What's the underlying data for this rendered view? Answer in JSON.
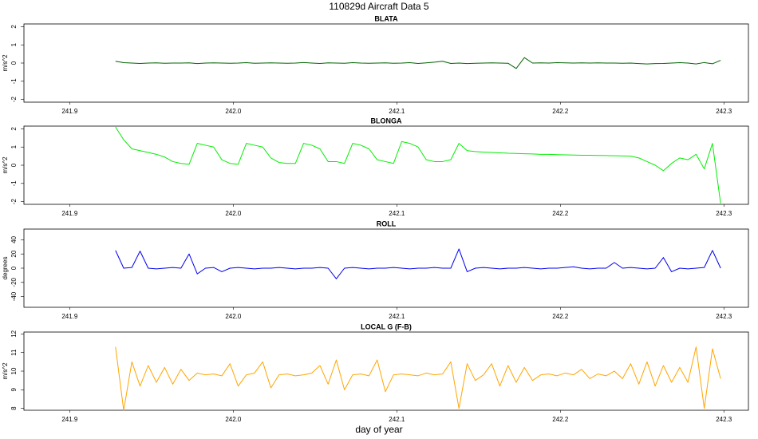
{
  "figure": {
    "title": "110829d   Aircraft Data 5",
    "xlabel": "day of year"
  },
  "chart_data": [
    {
      "type": "line",
      "title": "BLATA",
      "ylabel": "m/s^2",
      "color": "#006400",
      "x": [
        241.928,
        241.933,
        241.938,
        241.943,
        241.948,
        241.953,
        241.958,
        241.963,
        241.968,
        241.973,
        241.978,
        241.983,
        241.988,
        241.993,
        241.998,
        242.003,
        242.008,
        242.013,
        242.018,
        242.023,
        242.028,
        242.033,
        242.038,
        242.043,
        242.048,
        242.053,
        242.058,
        242.063,
        242.068,
        242.073,
        242.078,
        242.083,
        242.088,
        242.093,
        242.098,
        242.103,
        242.108,
        242.113,
        242.118,
        242.123,
        242.128,
        242.133,
        242.138,
        242.143,
        242.148,
        242.153,
        242.158,
        242.163,
        242.168,
        242.173,
        242.178,
        242.183,
        242.188,
        242.193,
        242.198,
        242.203,
        242.208,
        242.213,
        242.218,
        242.223,
        242.228,
        242.233,
        242.238,
        242.243,
        242.248,
        242.253,
        242.258,
        242.263,
        242.268,
        242.273,
        242.278,
        242.283,
        242.288,
        242.293,
        242.298
      ],
      "values": [
        0.1,
        0.02,
        0,
        -0.02,
        0,
        0.01,
        -0.01,
        0,
        0,
        0.01,
        -0.03,
        0,
        0.01,
        0,
        -0.01,
        0,
        0.02,
        -0.01,
        0,
        0.01,
        0,
        -0.01,
        0,
        0.03,
        0,
        -0.02,
        0.01,
        0,
        -0.01,
        0.02,
        0,
        -0.01,
        0,
        0.01,
        -0.01,
        0,
        0.02,
        -0.02,
        0.01,
        0.05,
        0.1,
        -0.02,
        0,
        -0.03,
        -0.01,
        0,
        0.01,
        0,
        -0.01,
        -0.3,
        0.3,
        0,
        0.01,
        0,
        0.02,
        0.01,
        0,
        0.01,
        0,
        0.01,
        0,
        0,
        -0.01,
        0,
        -0.03,
        -0.05,
        -0.03,
        -0.02,
        0,
        0.02,
        0,
        -0.05,
        0.03,
        -0.04,
        0.15
      ],
      "xlim": [
        241.872,
        242.315
      ],
      "xticks": [
        241.9,
        {
          "value": 242,
          "label": "242.0"
        },
        242.1,
        242.2,
        242.3
      ],
      "ylim": [
        -2.15,
        2.15
      ],
      "yticks": [
        -2,
        -1,
        0,
        1,
        2
      ]
    },
    {
      "type": "line",
      "title": "BLONGA",
      "ylabel": "m/s^2",
      "color": "#00ee00",
      "x": [
        241.928,
        241.933,
        241.938,
        241.943,
        241.948,
        241.953,
        241.958,
        241.963,
        241.968,
        241.973,
        241.978,
        241.983,
        241.988,
        241.993,
        241.998,
        242.003,
        242.008,
        242.013,
        242.018,
        242.023,
        242.028,
        242.033,
        242.038,
        242.043,
        242.048,
        242.053,
        242.058,
        242.063,
        242.068,
        242.073,
        242.078,
        242.083,
        242.088,
        242.093,
        242.098,
        242.103,
        242.108,
        242.113,
        242.118,
        242.123,
        242.128,
        242.133,
        242.138,
        242.143,
        242.148,
        242.153,
        242.158,
        242.163,
        242.168,
        242.173,
        242.178,
        242.183,
        242.188,
        242.193,
        242.198,
        242.203,
        242.208,
        242.213,
        242.218,
        242.223,
        242.228,
        242.233,
        242.238,
        242.243,
        242.248,
        242.253,
        242.258,
        242.263,
        242.268,
        242.273,
        242.278,
        242.283,
        242.288,
        242.293,
        242.298
      ],
      "values": [
        2.1,
        1.4,
        0.9,
        0.8,
        0.7,
        0.6,
        0.45,
        0.2,
        0.1,
        0.05,
        1.2,
        1.1,
        1.0,
        0.3,
        0.1,
        0.05,
        1.2,
        1.1,
        1.0,
        0.4,
        0.15,
        0.1,
        0.1,
        1.2,
        1.1,
        0.9,
        0.2,
        0.2,
        0.1,
        1.2,
        1.1,
        0.9,
        0.3,
        0.2,
        0.1,
        1.3,
        1.2,
        1.0,
        0.3,
        0.2,
        0.2,
        0.3,
        1.2,
        0.8,
        0.75,
        0.72,
        0.7,
        0.68,
        0.66,
        0.65,
        0.63,
        0.62,
        0.6,
        0.6,
        0.58,
        0.57,
        0.56,
        0.55,
        0.55,
        0.54,
        0.53,
        0.52,
        0.51,
        0.5,
        0.4,
        0.2,
        0.0,
        -0.3,
        0.1,
        0.4,
        0.3,
        0.6,
        -0.2,
        1.2,
        -2.1
      ],
      "xlim": [
        241.872,
        242.315
      ],
      "xticks": [
        241.9,
        {
          "value": 242,
          "label": "242.0"
        },
        242.1,
        242.2,
        242.3
      ],
      "ylim": [
        -2.15,
        2.15
      ],
      "yticks": [
        -2,
        -1,
        0,
        1,
        2
      ]
    },
    {
      "type": "line",
      "title": "ROLL",
      "ylabel": "degrees",
      "color": "#0000ee",
      "x": [
        241.928,
        241.933,
        241.938,
        241.943,
        241.948,
        241.953,
        241.958,
        241.963,
        241.968,
        241.973,
        241.978,
        241.983,
        241.988,
        241.993,
        241.998,
        242.003,
        242.008,
        242.013,
        242.018,
        242.023,
        242.028,
        242.033,
        242.038,
        242.043,
        242.048,
        242.053,
        242.058,
        242.063,
        242.068,
        242.073,
        242.078,
        242.083,
        242.088,
        242.093,
        242.098,
        242.103,
        242.108,
        242.113,
        242.118,
        242.123,
        242.128,
        242.133,
        242.138,
        242.143,
        242.148,
        242.153,
        242.158,
        242.163,
        242.168,
        242.173,
        242.178,
        242.183,
        242.188,
        242.193,
        242.198,
        242.203,
        242.208,
        242.213,
        242.218,
        242.223,
        242.228,
        242.233,
        242.238,
        242.243,
        242.248,
        242.253,
        242.258,
        242.263,
        242.268,
        242.273,
        242.278,
        242.283,
        242.288,
        242.293,
        242.298
      ],
      "values": [
        25,
        0,
        1,
        24,
        0,
        -1,
        0,
        1,
        0,
        20,
        -8,
        0,
        1,
        -5,
        0,
        1,
        0,
        -1,
        0,
        0,
        1,
        0,
        -1,
        0,
        0,
        1,
        0,
        -15,
        0,
        1,
        0,
        -1,
        0,
        0,
        1,
        0,
        -1,
        0,
        0,
        1,
        0,
        0,
        27,
        -5,
        0,
        1,
        0,
        -1,
        0,
        0,
        1,
        0,
        -1,
        0,
        0,
        1,
        2,
        0,
        -1,
        0,
        0,
        8,
        0,
        1,
        0,
        -1,
        0,
        15,
        -5,
        0,
        -1,
        0,
        1,
        25,
        0
      ],
      "xlim": [
        241.872,
        242.315
      ],
      "xticks": [
        241.9,
        {
          "value": 242,
          "label": "242.0"
        },
        242.1,
        242.2,
        242.3
      ],
      "ylim": [
        -55,
        55
      ],
      "yticks": [
        -40,
        -20,
        0,
        20,
        40
      ]
    },
    {
      "type": "line",
      "title": "LOCAL G (F-B)",
      "ylabel": "m/s^2",
      "color": "#ffa500",
      "x": [
        241.928,
        241.933,
        241.938,
        241.943,
        241.948,
        241.953,
        241.958,
        241.963,
        241.968,
        241.973,
        241.978,
        241.983,
        241.988,
        241.993,
        241.998,
        242.003,
        242.008,
        242.013,
        242.018,
        242.023,
        242.028,
        242.033,
        242.038,
        242.043,
        242.048,
        242.053,
        242.058,
        242.063,
        242.068,
        242.073,
        242.078,
        242.083,
        242.088,
        242.093,
        242.098,
        242.103,
        242.108,
        242.113,
        242.118,
        242.123,
        242.128,
        242.133,
        242.138,
        242.143,
        242.148,
        242.153,
        242.158,
        242.163,
        242.168,
        242.173,
        242.178,
        242.183,
        242.188,
        242.193,
        242.198,
        242.203,
        242.208,
        242.213,
        242.218,
        242.223,
        242.228,
        242.233,
        242.238,
        242.243,
        242.248,
        242.253,
        242.258,
        242.263,
        242.268,
        242.273,
        242.278,
        242.283,
        242.288,
        242.293,
        242.298
      ],
      "values": [
        11.3,
        7.9,
        10.5,
        9.2,
        10.3,
        9.4,
        10.2,
        9.3,
        10.1,
        9.5,
        9.9,
        9.8,
        9.85,
        9.75,
        10.4,
        9.2,
        9.8,
        9.9,
        10.5,
        9.1,
        9.8,
        9.85,
        9.75,
        9.8,
        9.9,
        10.3,
        9.3,
        10.6,
        9.0,
        9.8,
        9.85,
        9.75,
        10.6,
        8.9,
        9.8,
        9.85,
        9.8,
        9.75,
        9.9,
        9.8,
        9.85,
        10.5,
        8.0,
        10.4,
        9.5,
        9.8,
        10.4,
        9.2,
        10.3,
        9.4,
        10.2,
        9.5,
        9.8,
        9.85,
        9.75,
        9.9,
        9.8,
        10.1,
        9.6,
        9.85,
        9.75,
        10.0,
        9.6,
        10.4,
        9.3,
        10.5,
        9.2,
        10.3,
        9.4,
        10.2,
        9.4,
        11.3,
        8.0,
        11.2,
        9.6
      ],
      "xlim": [
        241.872,
        242.315
      ],
      "xticks": [
        241.9,
        {
          "value": 242,
          "label": "242.0"
        },
        242.1,
        242.2,
        242.3
      ],
      "ylim": [
        7.9,
        12.1
      ],
      "yticks": [
        8,
        9,
        10,
        11,
        12
      ]
    }
  ]
}
